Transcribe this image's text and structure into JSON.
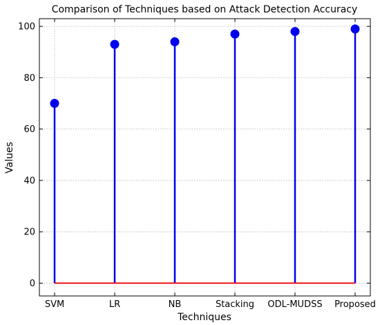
{
  "chart_data": {
    "type": "stem",
    "title": "Comparison of Techniques based on Attack Detection Accuracy",
    "xlabel": "Techniques",
    "ylabel": "Values",
    "categories": [
      "SVM",
      "LR",
      "NB",
      "Stacking",
      "ODL-MUDSS",
      "Proposed"
    ],
    "values": [
      70,
      93,
      94,
      97,
      98,
      99
    ],
    "ylim": [
      -5,
      103
    ],
    "yticks": [
      0,
      20,
      40,
      60,
      80,
      100
    ],
    "baseline": 0,
    "grid": true,
    "colors": {
      "stem": "#0000ee",
      "marker": "#0000ee",
      "baseline": "#ee0000"
    }
  }
}
